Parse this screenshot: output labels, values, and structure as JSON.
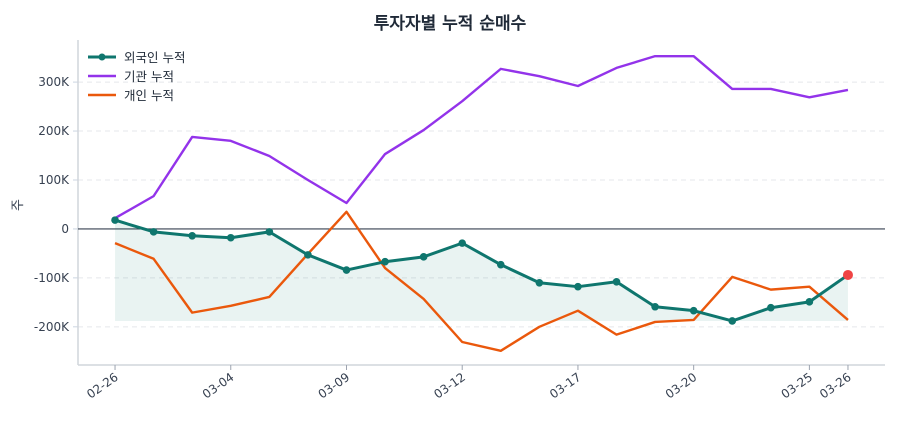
{
  "chart_data": {
    "type": "line",
    "title": "투자자별 누적 순매수",
    "xlabel": "",
    "ylabel": "주",
    "x": [
      "02-26",
      "02-27",
      "02-28",
      "03-04",
      "03-05",
      "03-06",
      "03-09",
      "03-10",
      "03-11",
      "03-12",
      "03-13",
      "03-16",
      "03-17",
      "03-18",
      "03-19",
      "03-20",
      "03-23",
      "03-24",
      "03-25",
      "03-26"
    ],
    "x_ticks": [
      [
        "02-26",
        0
      ],
      [
        "03-04",
        3
      ],
      [
        "03-09",
        6
      ],
      [
        "03-12",
        9
      ],
      [
        "03-17",
        12
      ],
      [
        "03-20",
        15
      ],
      [
        "03-25",
        18
      ],
      [
        "03-26",
        19
      ]
    ],
    "ylim": [
      -278000,
      386000
    ],
    "y_ticks": [
      -200000,
      -100000,
      0,
      100000,
      200000,
      300000
    ],
    "y_tick_labels": [
      "-200K",
      "-100K",
      "0",
      "100K",
      "200K",
      "300K"
    ],
    "grid": "horizontal dashed",
    "legend": "top-left",
    "series": [
      {
        "name": "외국인 누적",
        "color": "#0f766e",
        "markers": true,
        "fill": true,
        "highlight_last_color": "#ef4444",
        "values": [
          18000,
          -6000,
          -14000,
          -18000,
          -6000,
          -53000,
          -84000,
          -67000,
          -57000,
          -29000,
          -73000,
          -110000,
          -118000,
          -108000,
          -159000,
          -167000,
          -188000,
          -161000,
          -149000,
          -94000
        ]
      },
      {
        "name": "기관 누적",
        "color": "#9333ea",
        "values": [
          22000,
          67000,
          188000,
          180000,
          149000,
          100000,
          53000,
          153000,
          202000,
          261000,
          327000,
          312000,
          292000,
          329000,
          353000,
          353000,
          286000,
          286000,
          269000,
          284000
        ]
      },
      {
        "name": "개인 누적",
        "color": "#ea580c",
        "values": [
          -29000,
          -61000,
          -171000,
          -157000,
          -139000,
          -51000,
          35000,
          -80000,
          -143000,
          -231000,
          -249000,
          -200000,
          -167000,
          -216000,
          -190000,
          -186000,
          -98000,
          -124000,
          -118000,
          -186000
        ]
      }
    ]
  }
}
